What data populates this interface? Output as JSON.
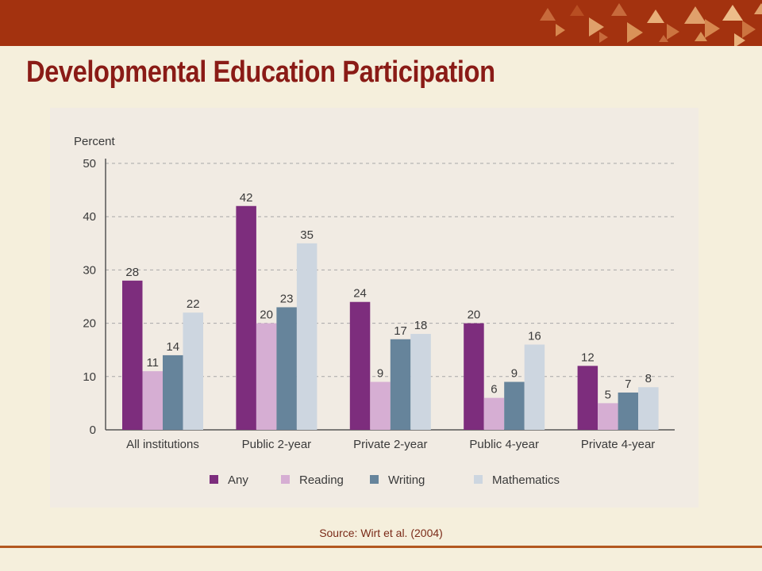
{
  "slide": {
    "title": "Developmental Education Participation",
    "source": "Source: Wirt et al. (2004)"
  },
  "colors": {
    "top_bar": "#a3320f",
    "title": "#8a1b16",
    "panel": "#f1ebe3",
    "footer_rule": "#b3581f"
  },
  "chart_data": {
    "type": "bar",
    "ylabel": "Percent",
    "xlabel": "",
    "ylim": [
      0,
      50
    ],
    "yticks": [
      0,
      10,
      20,
      30,
      40,
      50
    ],
    "grid": true,
    "legend_position": "bottom",
    "categories": [
      "All institutions",
      "Public 2-year",
      "Private 2-year",
      "Public 4-year",
      "Private 4-year"
    ],
    "series": [
      {
        "name": "Any",
        "color": "#7d2d7d",
        "values": [
          28,
          42,
          24,
          20,
          12
        ]
      },
      {
        "name": "Reading",
        "color": "#d6aed3",
        "values": [
          11,
          20,
          9,
          6,
          5
        ]
      },
      {
        "name": "Writing",
        "color": "#66849b",
        "values": [
          14,
          23,
          17,
          9,
          7
        ]
      },
      {
        "name": "Mathematics",
        "color": "#cdd6e0",
        "values": [
          22,
          35,
          18,
          16,
          8
        ]
      }
    ]
  }
}
